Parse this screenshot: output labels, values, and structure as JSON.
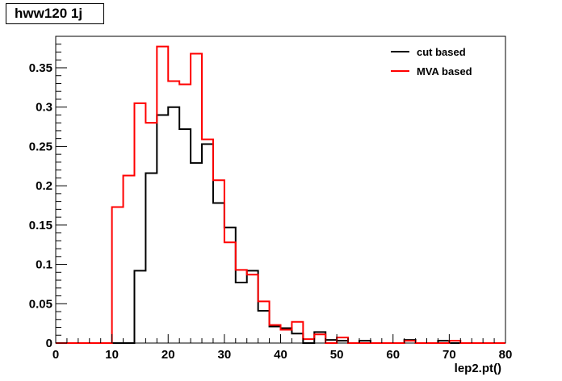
{
  "chart_data": {
    "type": "line",
    "title": "hww120 1j",
    "xlabel": "lep2.pt()",
    "ylabel": "",
    "xlim": [
      0,
      80
    ],
    "ylim": [
      0,
      0.39
    ],
    "xticks": [
      0,
      10,
      20,
      30,
      40,
      50,
      60,
      70,
      80
    ],
    "yticks": [
      0,
      0.05,
      0.1,
      0.15,
      0.2,
      0.25,
      0.3,
      0.35
    ],
    "ytick_labels": [
      "0",
      "0.05",
      "0.1",
      "0.15",
      "0.2",
      "0.25",
      "0.3",
      "0.35"
    ],
    "grid": false,
    "legend_position": "top-right",
    "bin_edges": [
      0,
      2,
      4,
      6,
      8,
      10,
      12,
      14,
      16,
      18,
      20,
      22,
      24,
      26,
      28,
      30,
      32,
      34,
      36,
      38,
      40,
      42,
      44,
      46,
      48,
      50,
      52,
      54,
      56,
      58,
      60,
      62,
      64,
      66,
      68,
      70,
      72,
      74,
      76,
      78,
      80
    ],
    "series": [
      {
        "name": "cut based",
        "color": "#000000",
        "values": [
          0,
          0,
          0,
          0,
          0,
          0,
          0,
          0.092,
          0.216,
          0.29,
          0.3,
          0.272,
          0.229,
          0.253,
          0.178,
          0.147,
          0.077,
          0.092,
          0.041,
          0.021,
          0.019,
          0.012,
          0,
          0.014,
          0.004,
          0.003,
          0,
          0.003,
          0,
          0,
          0,
          0.004,
          0,
          0,
          0.003,
          0,
          0,
          0,
          0,
          0
        ]
      },
      {
        "name": "MVA based",
        "color": "#ff0000",
        "values": [
          0,
          0,
          0,
          0,
          0,
          0.173,
          0.213,
          0.305,
          0.28,
          0.377,
          0.333,
          0.329,
          0.368,
          0.259,
          0.207,
          0.128,
          0.093,
          0.087,
          0.053,
          0.023,
          0.017,
          0.027,
          0.005,
          0.011,
          0,
          0.007,
          0,
          0,
          0,
          0,
          0,
          0.003,
          0,
          0,
          0,
          0.003,
          0,
          0,
          0,
          0
        ]
      }
    ]
  }
}
